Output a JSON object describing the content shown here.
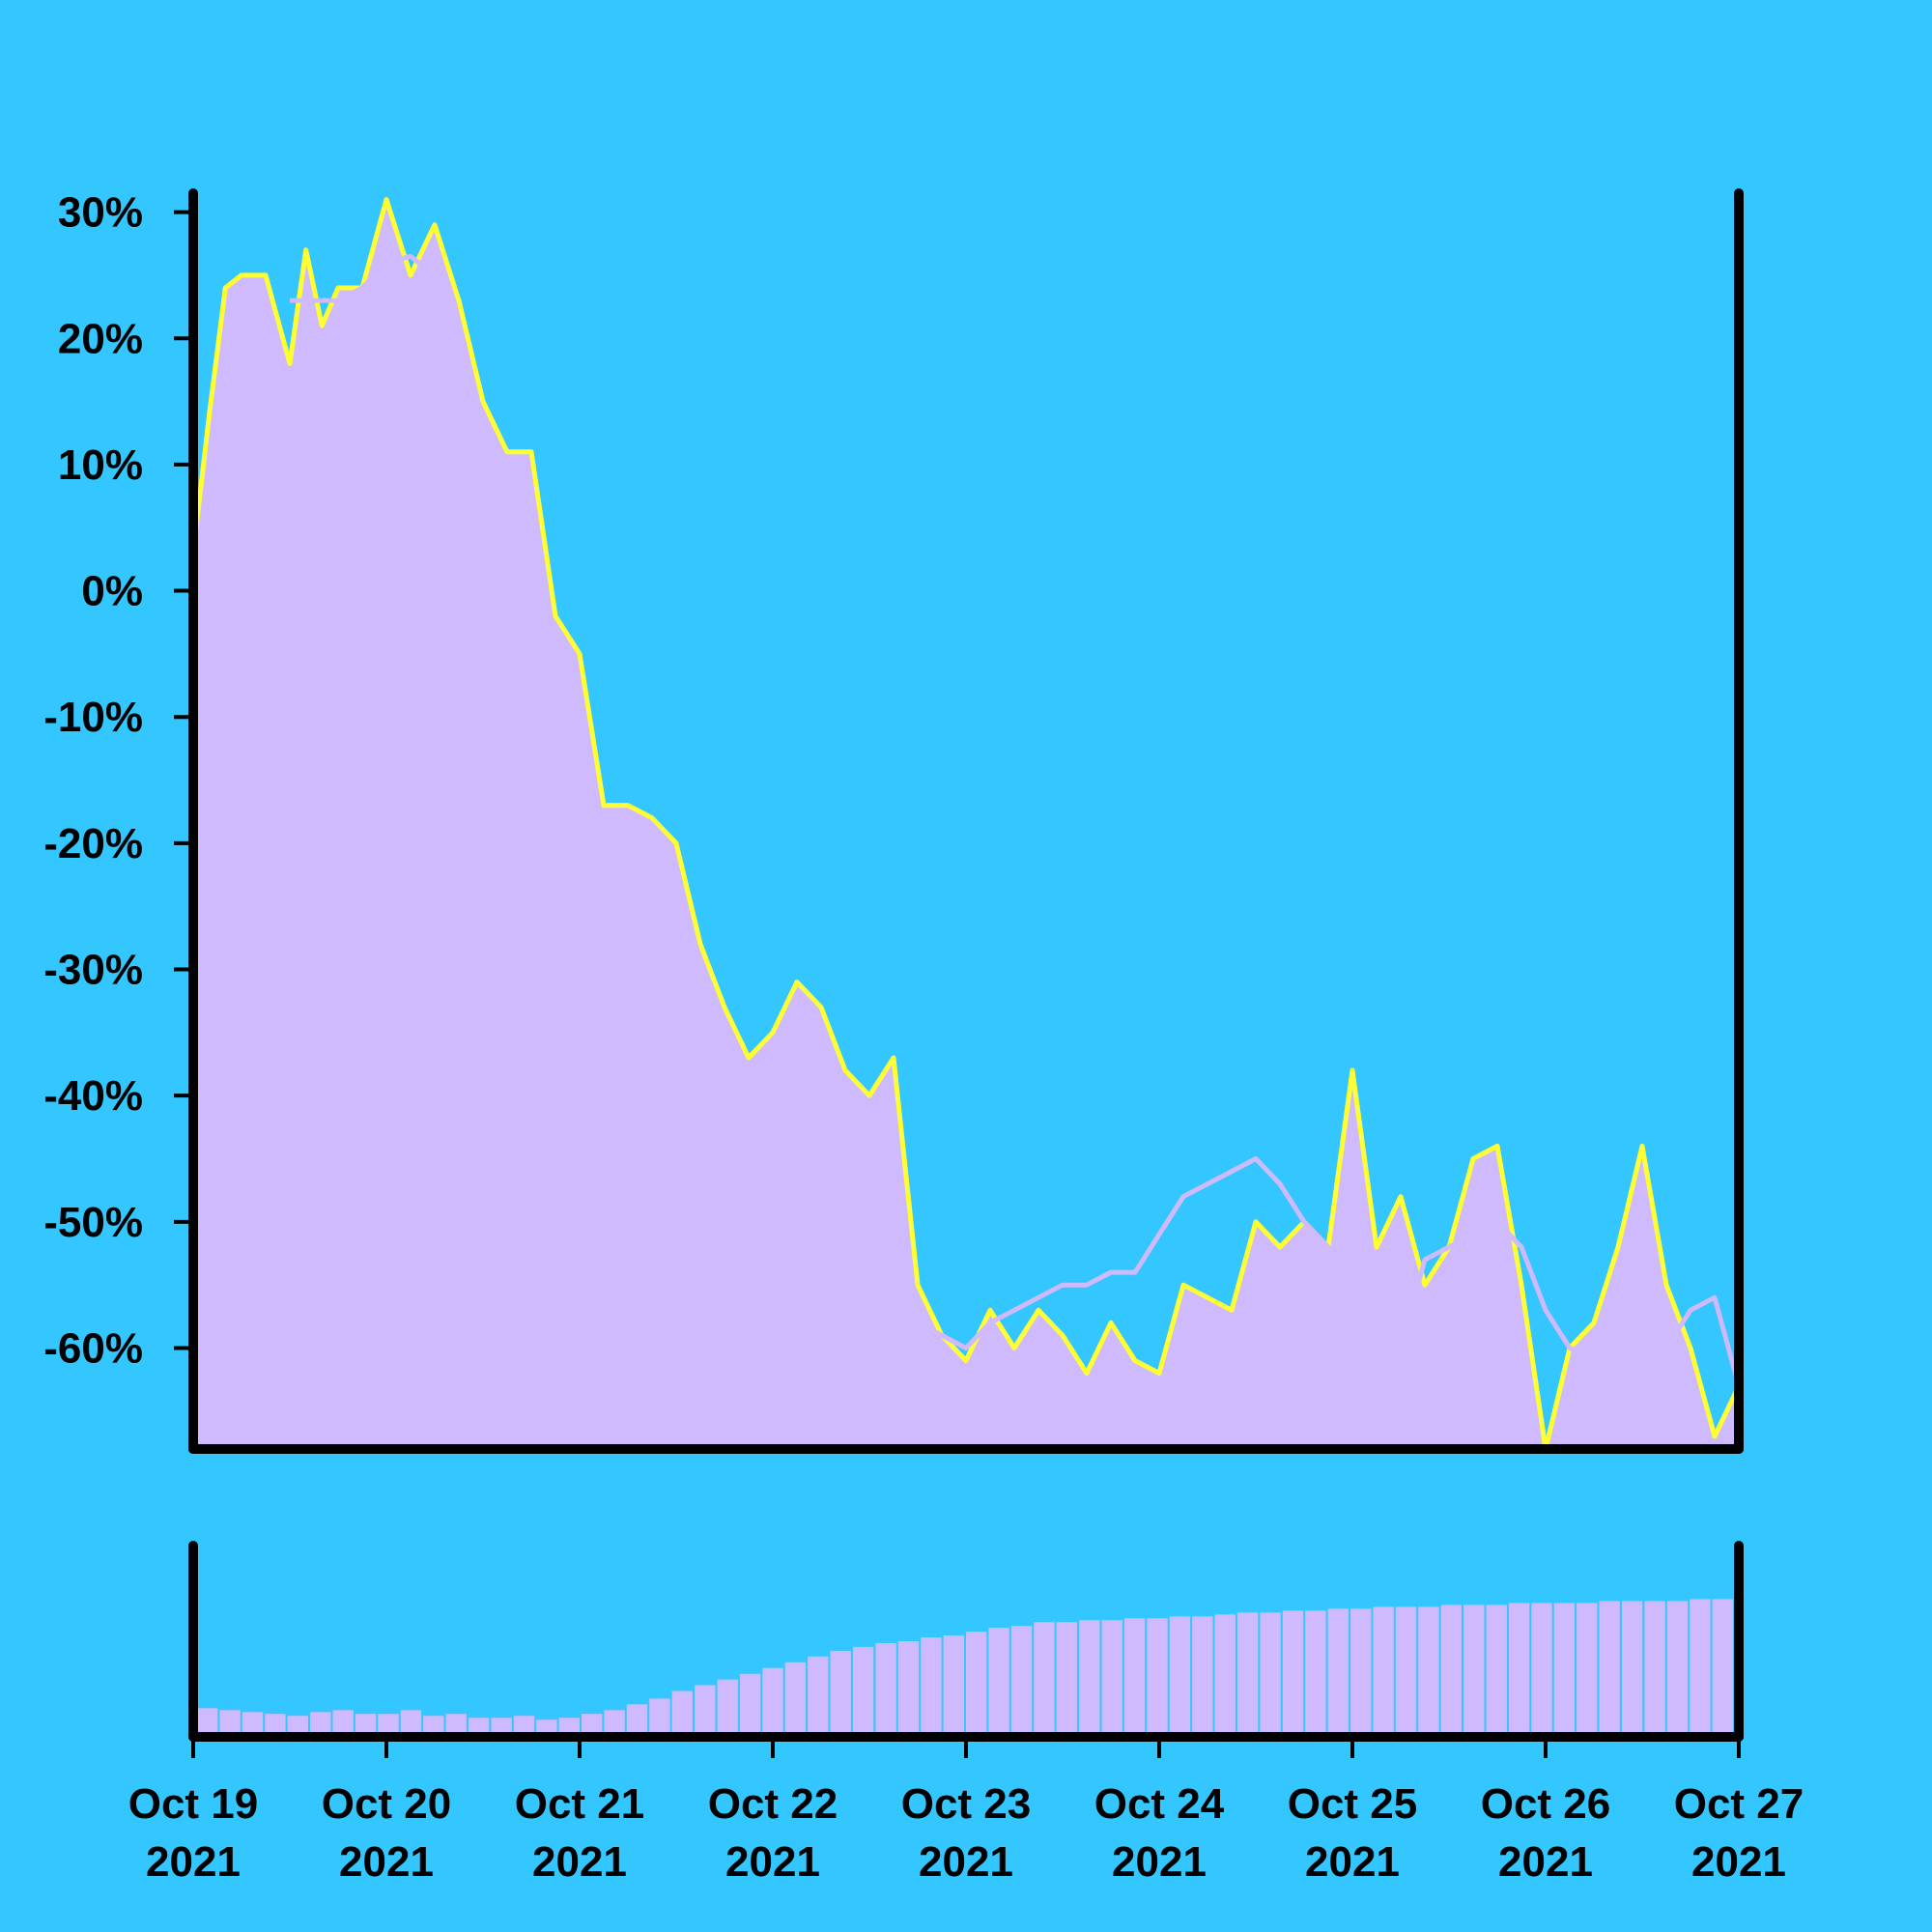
{
  "colors": {
    "background": "#33c6ff",
    "price_line": "#ffff33",
    "area_fill": "#cfb9ff",
    "moving_average": "#cfb9ff",
    "volume_bars": "#cfb9ff",
    "axes": "#000000"
  },
  "chart_data": {
    "type": "area",
    "title": "",
    "xlabel": "",
    "ylabel": "",
    "x_range": [
      "2021-10-19",
      "2021-10-27"
    ],
    "ylim": [
      -68,
      31.5
    ],
    "y_ticks": [
      {
        "value": 30,
        "label": "30%"
      },
      {
        "value": 20,
        "label": "20%"
      },
      {
        "value": 10,
        "label": "10%"
      },
      {
        "value": 0,
        "label": "0%"
      },
      {
        "value": -10,
        "label": "-10%"
      },
      {
        "value": -20,
        "label": "-20%"
      },
      {
        "value": -30,
        "label": "-30%"
      },
      {
        "value": -40,
        "label": "-40%"
      },
      {
        "value": -50,
        "label": "-50%"
      },
      {
        "value": -60,
        "label": "-60%"
      }
    ],
    "x_ticks": [
      {
        "date": "2021-10-19",
        "line1": "Oct 19",
        "line2": "2021"
      },
      {
        "date": "2021-10-20",
        "line1": "Oct 20",
        "line2": "2021"
      },
      {
        "date": "2021-10-21",
        "line1": "Oct 21",
        "line2": "2021"
      },
      {
        "date": "2021-10-22",
        "line1": "Oct 22",
        "line2": "2021"
      },
      {
        "date": "2021-10-23",
        "line1": "Oct 23",
        "line2": "2021"
      },
      {
        "date": "2021-10-24",
        "line1": "Oct 24",
        "line2": "2021"
      },
      {
        "date": "2021-10-25",
        "line1": "Oct 25",
        "line2": "2021"
      },
      {
        "date": "2021-10-26",
        "line1": "Oct 26",
        "line2": "2021"
      },
      {
        "date": "2021-10-27",
        "line1": "Oct 27",
        "line2": "2021"
      }
    ],
    "series": [
      {
        "type": "area",
        "x": [
          "2021-10-19 00:00",
          "2021-10-19 02:00",
          "2021-10-19 04:00",
          "2021-10-19 06:00",
          "2021-10-19 09:00",
          "2021-10-19 12:00",
          "2021-10-19 14:00",
          "2021-10-19 16:00",
          "2021-10-19 18:00",
          "2021-10-19 21:00",
          "2021-10-20 00:00",
          "2021-10-20 03:00",
          "2021-10-20 06:00",
          "2021-10-20 09:00",
          "2021-10-20 12:00",
          "2021-10-20 15:00",
          "2021-10-20 18:00",
          "2021-10-20 21:00",
          "2021-10-21 00:00",
          "2021-10-21 03:00",
          "2021-10-21 06:00",
          "2021-10-21 09:00",
          "2021-10-21 12:00",
          "2021-10-21 15:00",
          "2021-10-21 18:00",
          "2021-10-21 21:00",
          "2021-10-22 00:00",
          "2021-10-22 03:00",
          "2021-10-22 06:00",
          "2021-10-22 09:00",
          "2021-10-22 12:00",
          "2021-10-22 15:00",
          "2021-10-22 18:00",
          "2021-10-22 21:00",
          "2021-10-23 00:00",
          "2021-10-23 03:00",
          "2021-10-23 06:00",
          "2021-10-23 09:00",
          "2021-10-23 12:00",
          "2021-10-23 15:00",
          "2021-10-23 18:00",
          "2021-10-23 21:00",
          "2021-10-24 00:00",
          "2021-10-24 03:00",
          "2021-10-24 06:00",
          "2021-10-24 09:00",
          "2021-10-24 12:00",
          "2021-10-24 15:00",
          "2021-10-24 18:00",
          "2021-10-24 21:00",
          "2021-10-25 00:00",
          "2021-10-25 03:00",
          "2021-10-25 06:00",
          "2021-10-25 09:00",
          "2021-10-25 12:00",
          "2021-10-25 15:00",
          "2021-10-25 18:00",
          "2021-10-25 21:00",
          "2021-10-26 00:00",
          "2021-10-26 03:00",
          "2021-10-26 06:00",
          "2021-10-26 09:00",
          "2021-10-26 12:00",
          "2021-10-26 15:00",
          "2021-10-26 18:00",
          "2021-10-26 21:00",
          "2021-10-27 00:00"
        ],
        "values": [
          3,
          14,
          24,
          25,
          25,
          18,
          27,
          21,
          24,
          24,
          31,
          25,
          29,
          23,
          15,
          11,
          11,
          -2,
          -5,
          -17,
          -17,
          -18,
          -20,
          -28,
          -33,
          -37,
          -35,
          -31,
          -33,
          -38,
          -40,
          -37,
          -55,
          -59,
          -61,
          -57,
          -60,
          -57,
          -59,
          -62,
          -58,
          -61,
          -62,
          -55,
          -56,
          -57,
          -50,
          -52,
          -50,
          -52,
          -38,
          -52,
          -48,
          -55,
          -52,
          -45,
          -44,
          -55,
          -68,
          -60,
          -58,
          -52,
          -44,
          -55,
          -60,
          -67,
          -63
        ]
      },
      {
        "type": "line",
        "x": [
          "2021-10-19 12:00",
          "2021-10-19 15:00",
          "2021-10-19 18:00",
          "2021-10-19 21:00",
          "2021-10-20 00:00",
          "2021-10-20 03:00",
          "2021-10-20 06:00",
          "2021-10-20 09:00",
          "2021-10-20 12:00",
          "2021-10-20 15:00",
          "2021-10-20 18:00",
          "2021-10-20 21:00",
          "2021-10-21 00:00",
          "2021-10-21 03:00",
          "2021-10-21 06:00",
          "2021-10-21 09:00",
          "2021-10-21 12:00",
          "2021-10-21 15:00",
          "2021-10-21 18:00",
          "2021-10-21 21:00",
          "2021-10-22 00:00",
          "2021-10-22 03:00",
          "2021-10-22 06:00",
          "2021-10-22 09:00",
          "2021-10-22 12:00",
          "2021-10-22 15:00",
          "2021-10-22 18:00",
          "2021-10-22 21:00",
          "2021-10-23 00:00",
          "2021-10-23 03:00",
          "2021-10-23 06:00",
          "2021-10-23 09:00",
          "2021-10-23 12:00",
          "2021-10-23 15:00",
          "2021-10-23 18:00",
          "2021-10-23 21:00",
          "2021-10-24 00:00",
          "2021-10-24 03:00",
          "2021-10-24 06:00",
          "2021-10-24 09:00",
          "2021-10-24 12:00",
          "2021-10-24 15:00",
          "2021-10-24 18:00",
          "2021-10-24 21:00",
          "2021-10-25 00:00",
          "2021-10-25 03:00",
          "2021-10-25 06:00",
          "2021-10-25 09:00",
          "2021-10-25 12:00",
          "2021-10-25 15:00",
          "2021-10-25 18:00",
          "2021-10-25 21:00",
          "2021-10-26 00:00",
          "2021-10-26 03:00",
          "2021-10-26 06:00",
          "2021-10-26 09:00",
          "2021-10-26 12:00",
          "2021-10-26 15:00",
          "2021-10-26 18:00",
          "2021-10-26 21:00",
          "2021-10-27 00:00"
        ],
        "values": [
          23,
          23,
          23,
          24,
          26,
          26.5,
          25,
          20,
          13,
          5,
          -4,
          -12,
          -18,
          -24,
          -30,
          -34,
          -35,
          -35,
          -36.5,
          -38,
          -48,
          -56,
          -59,
          -59,
          -60,
          -59,
          -58,
          -59,
          -60,
          -58,
          -57,
          -56,
          -55,
          -55,
          -54,
          -54,
          -51,
          -48,
          -47,
          -46,
          -45,
          -47,
          -50,
          -52,
          -55,
          -59,
          -60,
          -53,
          -52,
          -51,
          -50,
          -52,
          -57,
          -60,
          -61,
          -63,
          -63,
          -60,
          -57,
          -56,
          -63
        ]
      }
    ],
    "volume": {
      "x_range": [
        "2021-10-19",
        "2021-10-27"
      ],
      "values": [
        15,
        14,
        13,
        12,
        11,
        13,
        14,
        12,
        12,
        14,
        11,
        12,
        10,
        10,
        11,
        9,
        10,
        12,
        14,
        17,
        20,
        24,
        27,
        30,
        33,
        36,
        39,
        42,
        45,
        47,
        49,
        50,
        52,
        53,
        55,
        57,
        58,
        60,
        60,
        61,
        61,
        62,
        62,
        63,
        63,
        64,
        65,
        65,
        66,
        66,
        67,
        67,
        68,
        68,
        68,
        69,
        69,
        69,
        70,
        70,
        70,
        70,
        71,
        71,
        71,
        71,
        72,
        72
      ]
    }
  }
}
